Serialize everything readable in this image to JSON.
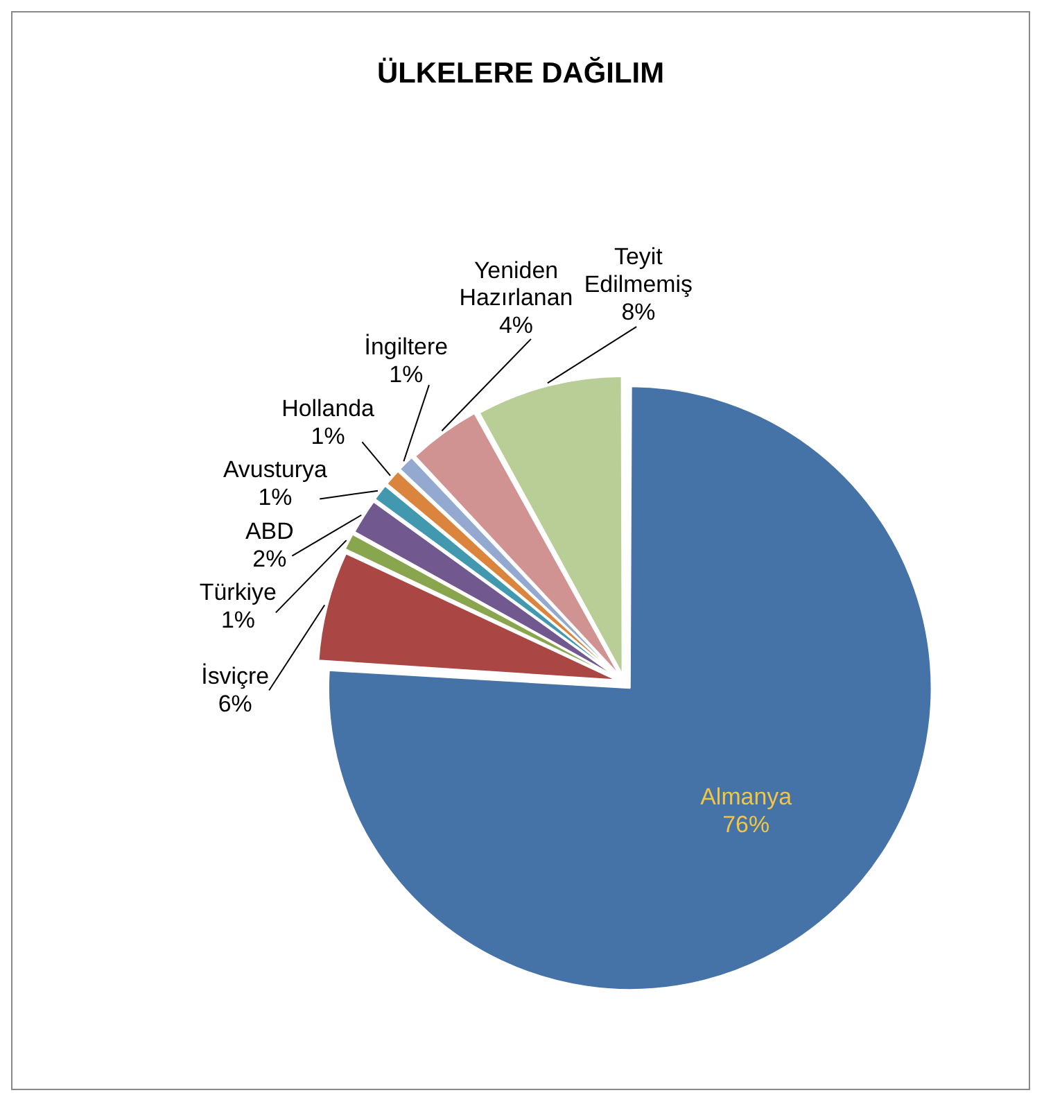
{
  "chart_data": {
    "type": "pie",
    "title": "ÜLKELERE DAĞILIM",
    "categories": [
      "Almanya",
      "İsviçre",
      "Türkiye",
      "ABD",
      "Avusturya",
      "Hollanda",
      "İngiltere",
      "Yeniden Hazırlanan",
      "Teyit Edilmemiş"
    ],
    "values": [
      76,
      6,
      1,
      2,
      1,
      1,
      1,
      4,
      8
    ],
    "colors": [
      "#4572a7",
      "#aa4643",
      "#89a54e",
      "#71588f",
      "#4198af",
      "#db843d",
      "#93a9cf",
      "#d19392",
      "#b9cd96"
    ],
    "value_labels": [
      "76%",
      "6%",
      "1%",
      "2%",
      "1%",
      "1%",
      "1%",
      "4%",
      "8%"
    ]
  }
}
